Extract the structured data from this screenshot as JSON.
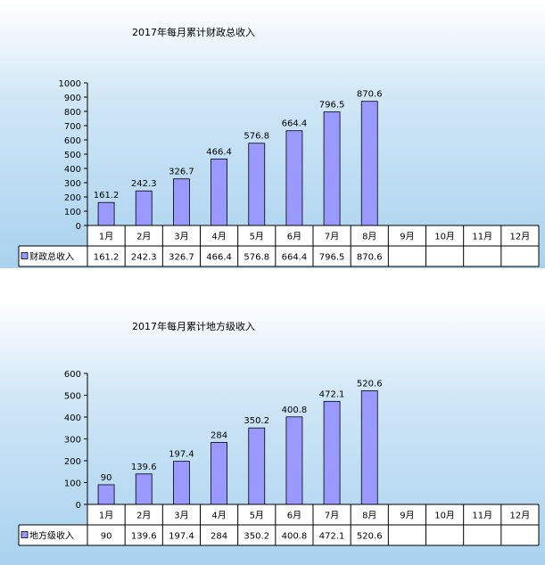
{
  "chart_data": [
    {
      "type": "bar",
      "title": "2017年每月累计财政总收入",
      "categories": [
        "1月",
        "2月",
        "3月",
        "4月",
        "5月",
        "6月",
        "7月",
        "8月",
        "9月",
        "10月",
        "11月",
        "12月"
      ],
      "series": [
        {
          "name": "财政总收入",
          "values": [
            161.2,
            242.3,
            326.7,
            466.4,
            576.8,
            664.4,
            796.5,
            870.6,
            null,
            null,
            null,
            null
          ]
        }
      ],
      "ylim": [
        0,
        1000
      ],
      "yticks": [
        0,
        100,
        200,
        300,
        400,
        500,
        600,
        700,
        800,
        900,
        1000
      ],
      "data_labels": [
        "161.2",
        "242.3",
        "326.7",
        "466.4",
        "576.8",
        "664.4",
        "796.5",
        "870.6"
      ],
      "table_values": [
        "161.2",
        "242.3",
        "326.7",
        "466.4",
        "576.8",
        "664.4",
        "796.5",
        "870.6",
        "",
        "",
        "",
        ""
      ],
      "grid": false,
      "legend": "data-table",
      "colors": {
        "bar": "#9999ff",
        "bar_edge": "#000000"
      }
    },
    {
      "type": "bar",
      "title": "2017年每月累计地方级收入",
      "categories": [
        "1月",
        "2月",
        "3月",
        "4月",
        "5月",
        "6月",
        "7月",
        "8月",
        "9月",
        "10月",
        "11月",
        "12月"
      ],
      "series": [
        {
          "name": "地方级收入",
          "values": [
            90,
            139.6,
            197.4,
            284,
            350.2,
            400.8,
            472.1,
            520.6,
            null,
            null,
            null,
            null
          ]
        }
      ],
      "ylim": [
        0,
        600
      ],
      "yticks": [
        0,
        100,
        200,
        300,
        400,
        500,
        600
      ],
      "data_labels": [
        "90",
        "139.6",
        "197.4",
        "284",
        "350.2",
        "400.8",
        "472.1",
        "520.6"
      ],
      "table_values": [
        "90",
        "139.6",
        "197.4",
        "284",
        "350.2",
        "400.8",
        "472.1",
        "520.6",
        "",
        "",
        "",
        ""
      ],
      "grid": false,
      "legend": "data-table",
      "colors": {
        "bar": "#9999ff",
        "bar_edge": "#000000"
      }
    }
  ]
}
